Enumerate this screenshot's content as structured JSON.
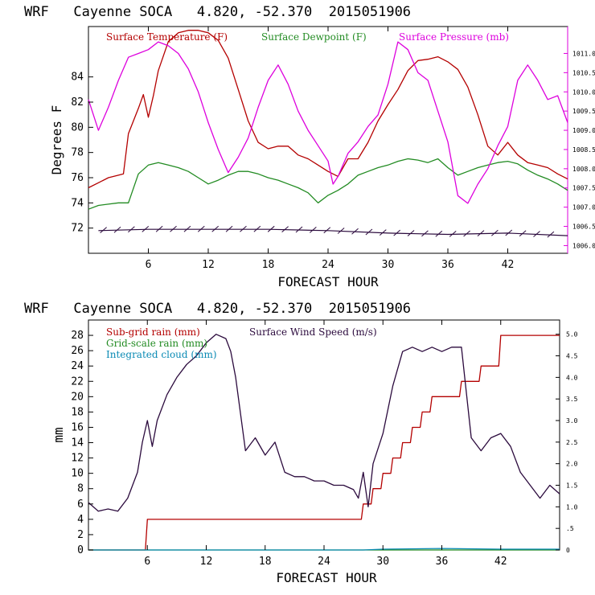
{
  "chart_data": [
    {
      "type": "line",
      "title": "WRF   Cayenne SOCA   4.820, -52.370  2015051906",
      "xlabel": "FORECAST HOUR",
      "ylabel": "Degrees F",
      "xlim": [
        0,
        48
      ],
      "ylim": [
        70,
        88
      ],
      "y2lim": [
        1005.8,
        1011.7
      ],
      "x_ticks": [
        6,
        12,
        18,
        24,
        30,
        36,
        42
      ],
      "y_ticks": [
        72,
        74,
        76,
        78,
        80,
        82,
        84
      ],
      "y2_ticks": [
        "1006.0",
        "1006.5",
        "1007.0",
        "1007.5",
        "1008.0",
        "1008.5",
        "1009.0",
        "1009.5",
        "1010.0",
        "1010.5",
        "1011.0"
      ],
      "colors": {
        "temperature": "#b40000",
        "dewpoint": "#228b22",
        "pressure": "#dd00dd",
        "wind": "#2b0a3d"
      },
      "series": [
        {
          "name": "Surface Temperature (F)",
          "axis": "left",
          "color": "#b40000",
          "x": [
            0,
            1,
            2,
            3,
            3.5,
            4,
            5,
            5.5,
            6,
            6.5,
            7,
            8,
            9,
            10,
            11,
            12,
            13,
            14,
            15,
            16,
            17,
            18,
            19,
            20,
            21,
            22,
            23,
            24,
            25,
            26,
            27,
            28,
            29,
            30,
            31,
            32,
            33,
            34,
            35,
            36,
            37,
            38,
            39,
            40,
            41,
            42,
            43,
            44,
            45,
            46,
            47,
            48
          ],
          "values": [
            75.2,
            75.6,
            76,
            76.2,
            76.3,
            79.5,
            81.5,
            82.6,
            80.8,
            82.5,
            84.5,
            86.8,
            87.5,
            87.7,
            87.7,
            87.5,
            86.9,
            85.5,
            83,
            80.5,
            78.8,
            78.3,
            78.5,
            78.5,
            77.8,
            77.5,
            77,
            76.5,
            76.1,
            77.5,
            77.5,
            78.8,
            80.5,
            81.8,
            83,
            84.5,
            85.3,
            85.4,
            85.6,
            85.2,
            84.6,
            83.2,
            81,
            78.5,
            77.8,
            78.8,
            77.8,
            77.2,
            77,
            76.8,
            76.3,
            75.9
          ]
        },
        {
          "name": "Surface Dewpoint (F)",
          "axis": "left",
          "color": "#228b22",
          "x": [
            0,
            1,
            2,
            3,
            4,
            5,
            6,
            7,
            8,
            9,
            10,
            11,
            12,
            13,
            14,
            15,
            16,
            17,
            18,
            19,
            20,
            21,
            22,
            23,
            24,
            25,
            26,
            27,
            28,
            29,
            30,
            31,
            32,
            33,
            34,
            35,
            36,
            37,
            38,
            39,
            40,
            41,
            42,
            43,
            44,
            45,
            46,
            47,
            48
          ],
          "values": [
            73.5,
            73.8,
            73.9,
            74,
            74,
            76.3,
            77,
            77.2,
            77,
            76.8,
            76.5,
            76,
            75.5,
            75.8,
            76.2,
            76.5,
            76.5,
            76.3,
            76,
            75.8,
            75.5,
            75.2,
            74.8,
            74,
            74.6,
            75,
            75.5,
            76.2,
            76.5,
            76.8,
            77,
            77.3,
            77.5,
            77.4,
            77.2,
            77.5,
            76.8,
            76.2,
            76.5,
            76.8,
            77,
            77.2,
            77.3,
            77.1,
            76.6,
            76.2,
            75.9,
            75.5,
            75
          ]
        },
        {
          "name": "Surface Pressure (mb)",
          "axis": "right",
          "color": "#dd00dd",
          "x": [
            0,
            0.5,
            1,
            2,
            3,
            4,
            5,
            6,
            7,
            8,
            9,
            10,
            11,
            12,
            13,
            14,
            15,
            16,
            17,
            18,
            19,
            20,
            21,
            22,
            23,
            24,
            24.5,
            25,
            26,
            27,
            28,
            29,
            30,
            31,
            32,
            33,
            34,
            35,
            36,
            37,
            38,
            39,
            40,
            41,
            42,
            43,
            44,
            45,
            46,
            47,
            48
          ],
          "values": [
            1009.8,
            1009.4,
            1009.0,
            1009.6,
            1010.3,
            1010.9,
            1011.0,
            1011.1,
            1011.3,
            1011.2,
            1011.0,
            1010.6,
            1010.0,
            1009.2,
            1008.5,
            1007.9,
            1008.3,
            1008.8,
            1009.6,
            1010.3,
            1010.7,
            1010.2,
            1009.5,
            1009.0,
            1008.6,
            1008.2,
            1007.6,
            1007.8,
            1008.4,
            1008.7,
            1009.1,
            1009.4,
            1010.2,
            1011.3,
            1011.1,
            1010.5,
            1010.3,
            1009.5,
            1008.7,
            1007.3,
            1007.1,
            1007.6,
            1008.0,
            1008.6,
            1009.1,
            1010.3,
            1010.7,
            1010.3,
            1009.8,
            1009.9,
            1009.2
          ]
        },
        {
          "name": "Surface Wind",
          "axis": "left",
          "color": "#2b0a3d",
          "x": [
            1,
            6,
            12,
            18,
            24,
            30,
            36,
            42,
            48
          ],
          "values": [
            71.8,
            71.9,
            71.9,
            71.9,
            71.8,
            71.6,
            71.5,
            71.6,
            71.4
          ]
        }
      ],
      "legend": [
        "Surface Temperature (F)",
        "Surface Dewpoint (F)",
        "Surface Pressure (mb)"
      ]
    },
    {
      "type": "line",
      "title": "WRF   Cayenne SOCA   4.820, -52.370  2015051906",
      "xlabel": "FORECAST HOUR",
      "ylabel": "mm",
      "xlim": [
        0,
        48
      ],
      "ylim": [
        0,
        30
      ],
      "y2lim": [
        0,
        5.33
      ],
      "x_ticks": [
        6,
        12,
        18,
        24,
        30,
        36,
        42
      ],
      "y_ticks": [
        0,
        2,
        4,
        6,
        8,
        10,
        12,
        14,
        16,
        18,
        20,
        22,
        24,
        26,
        28
      ],
      "y2_ticks": [
        "0",
        ".5",
        "1.0",
        "1.5",
        "2.0",
        "2.5",
        "3.0",
        "3.5",
        "4.0",
        "4.5",
        "5.0"
      ],
      "y2_values": [
        0,
        0.5,
        1,
        1.5,
        2,
        2.5,
        3,
        3.5,
        4,
        4.5,
        5
      ],
      "colors": {
        "subgrid": "#b40000",
        "gridscale": "#228b22",
        "cloud": "#0a8ab4",
        "wind": "#2b0a3d"
      },
      "series": [
        {
          "name": "Sub-grid rain (mm)",
          "axis": "left",
          "color": "#b40000",
          "x": [
            0,
            5.8,
            6,
            27.8,
            28,
            28.8,
            29,
            29.8,
            30,
            30.8,
            31,
            31.8,
            32,
            32.8,
            33,
            33.8,
            34,
            34.8,
            35,
            37.8,
            38,
            39.8,
            40,
            41.8,
            42,
            48
          ],
          "values": [
            0,
            0,
            4,
            4,
            6,
            6,
            8,
            8,
            10,
            10,
            12,
            12,
            14,
            14,
            16,
            16,
            18,
            18,
            20,
            20,
            22,
            22,
            24,
            24,
            28,
            28
          ]
        },
        {
          "name": "Grid-scale rain (mm)",
          "axis": "left",
          "color": "#228b22",
          "x": [
            0,
            48
          ],
          "values": [
            0,
            0
          ]
        },
        {
          "name": "Integrated cloud (mm)",
          "axis": "left",
          "color": "#0a8ab4",
          "x": [
            0,
            28,
            30,
            36,
            42,
            48
          ],
          "values": [
            0,
            0,
            0.1,
            0.2,
            0.1,
            0.1
          ]
        },
        {
          "name": "Surface Wind Speed (m/s)",
          "axis": "right",
          "color": "#2b0a3d",
          "x": [
            0,
            1,
            2,
            3,
            4,
            5,
            5.5,
            6,
            6.5,
            7,
            8,
            9,
            10,
            11,
            12,
            13,
            14,
            14.5,
            15,
            16,
            17,
            18,
            19,
            20,
            21,
            22,
            23,
            24,
            25,
            26,
            27,
            27.5,
            28,
            28.5,
            29,
            30,
            31,
            32,
            33,
            34,
            35,
            36,
            37,
            38,
            39,
            40,
            41,
            42,
            43,
            44,
            45,
            46,
            47,
            48
          ],
          "values": [
            1.1,
            0.9,
            0.95,
            0.9,
            1.2,
            1.8,
            2.5,
            3.0,
            2.4,
            3.0,
            3.6,
            4.0,
            4.3,
            4.5,
            4.8,
            5.0,
            4.9,
            4.6,
            4.0,
            2.3,
            2.6,
            2.2,
            2.5,
            1.8,
            1.7,
            1.7,
            1.6,
            1.6,
            1.5,
            1.5,
            1.4,
            1.2,
            1.8,
            1.0,
            2.0,
            2.7,
            3.8,
            4.6,
            4.7,
            4.6,
            4.7,
            4.6,
            4.7,
            4.7,
            2.6,
            2.3,
            2.6,
            2.7,
            2.4,
            1.8,
            1.5,
            1.2,
            1.5,
            1.3
          ]
        }
      ],
      "legend": [
        "Sub-grid rain (mm)",
        "Surface Wind Speed (m/s)",
        "Grid-scale rain (mm)",
        "Integrated cloud (mm)"
      ]
    }
  ]
}
